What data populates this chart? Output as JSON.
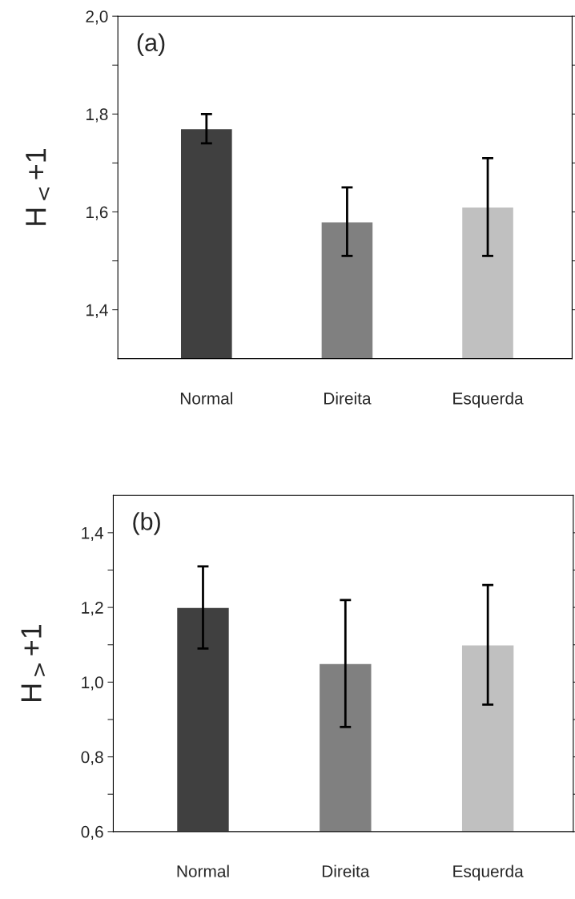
{
  "chart_data": [
    {
      "type": "bar",
      "categories": [
        "Normal",
        "Direita",
        "Esquerda"
      ],
      "values": [
        1.77,
        1.58,
        1.61
      ],
      "colors": [
        "#404040",
        "#808080",
        "#c0c0c0"
      ],
      "errors": [
        [
          1.74,
          1.8
        ],
        [
          1.51,
          1.65
        ],
        [
          1.51,
          1.71
        ]
      ],
      "ylabel": "H$_{<}$+1",
      "annotations": [
        "(a)"
      ],
      "ylim": [
        1.3,
        2.0
      ],
      "yticks": [
        {
          "value": 1.4,
          "label": "1,4"
        },
        {
          "value": 1.5,
          "label": null
        },
        {
          "value": 1.6,
          "label": "1,6"
        },
        {
          "value": 1.7,
          "label": null
        },
        {
          "value": 1.8,
          "label": "1,8"
        },
        {
          "value": 1.9,
          "label": null
        },
        {
          "value": 2.0,
          "label": "2,0"
        }
      ],
      "grid": false,
      "legend": false
    },
    {
      "type": "bar",
      "categories": [
        "Normal",
        "Direita",
        "Esquerda"
      ],
      "values": [
        1.2,
        1.05,
        1.1
      ],
      "colors": [
        "#404040",
        "#808080",
        "#c0c0c0"
      ],
      "errors": [
        [
          1.09,
          1.31
        ],
        [
          0.88,
          1.22
        ],
        [
          0.94,
          1.26
        ]
      ],
      "ylabel": "H$_{>}$+1",
      "annotations": [
        "(b)"
      ],
      "ylim": [
        0.6,
        1.5
      ],
      "yticks": [
        {
          "value": 0.6,
          "label": "0,6"
        },
        {
          "value": 0.7,
          "label": null
        },
        {
          "value": 0.8,
          "label": "0,8"
        },
        {
          "value": 0.9,
          "label": null
        },
        {
          "value": 1.0,
          "label": "1,0"
        },
        {
          "value": 1.1,
          "label": null
        },
        {
          "value": 1.2,
          "label": "1,2"
        },
        {
          "value": 1.3,
          "label": null
        },
        {
          "value": 1.4,
          "label": "1,4"
        }
      ],
      "grid": false,
      "legend": false
    }
  ]
}
